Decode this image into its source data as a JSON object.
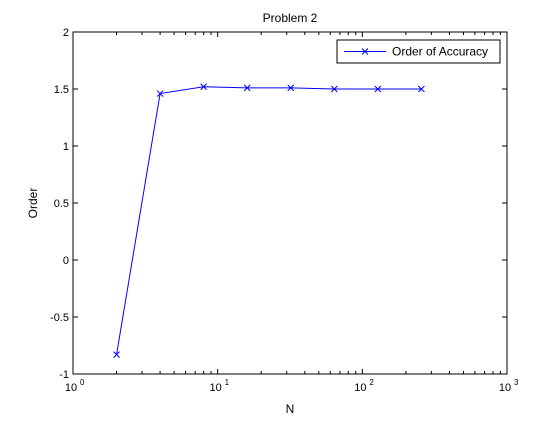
{
  "chart_data": {
    "type": "line",
    "title": "Problem 2",
    "xlabel": "N",
    "ylabel": "Order",
    "xscale": "log",
    "xlim": [
      1,
      1000
    ],
    "ylim": [
      -1,
      2
    ],
    "xticks": [
      {
        "value": 1,
        "base": "10",
        "exp": "0"
      },
      {
        "value": 10,
        "base": "10",
        "exp": "1"
      },
      {
        "value": 100,
        "base": "10",
        "exp": "2"
      },
      {
        "value": 1000,
        "base": "10",
        "exp": "3"
      }
    ],
    "yticks": [
      {
        "value": -1,
        "label": "-1"
      },
      {
        "value": -0.5,
        "label": "-0.5"
      },
      {
        "value": 0,
        "label": "0"
      },
      {
        "value": 0.5,
        "label": "0.5"
      },
      {
        "value": 1,
        "label": "1"
      },
      {
        "value": 1.5,
        "label": "1.5"
      },
      {
        "value": 2,
        "label": "2"
      }
    ],
    "grid": false,
    "legend_position": "top-right",
    "series": [
      {
        "name": "Order of Accuracy",
        "color": "#0000ff",
        "marker": "x",
        "x": [
          2,
          4,
          8,
          16,
          32,
          64,
          128,
          256
        ],
        "y": [
          -0.83,
          1.46,
          1.52,
          1.51,
          1.51,
          1.5,
          1.5,
          1.5
        ]
      }
    ]
  }
}
